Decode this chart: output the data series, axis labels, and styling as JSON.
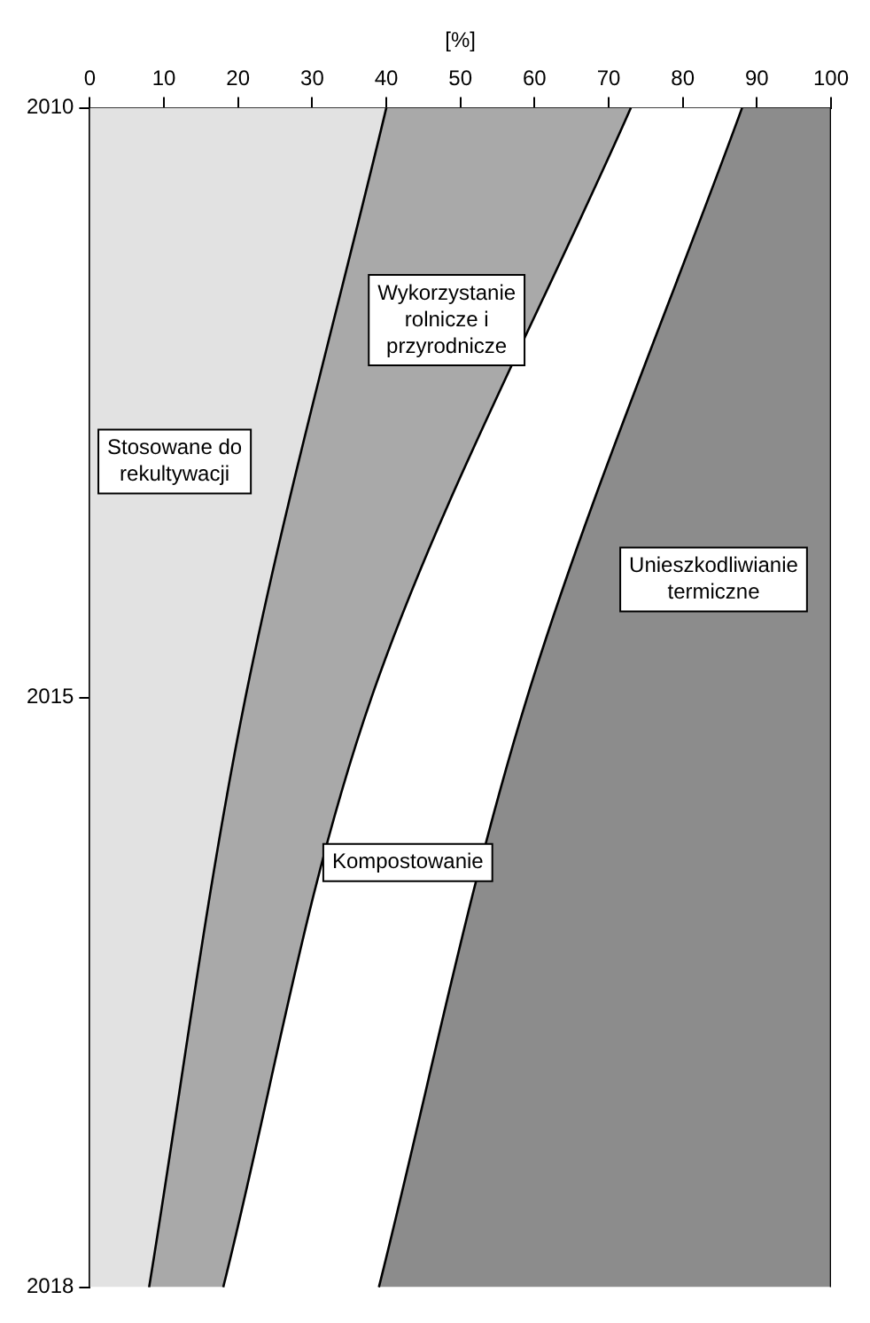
{
  "chart_data": {
    "type": "area",
    "orientation": "horizontal",
    "xlabel": "[%]",
    "categories": [
      "2010",
      "2015",
      "2018"
    ],
    "stacked": true,
    "xlim": [
      0,
      100
    ],
    "xticks": [
      0,
      10,
      20,
      30,
      40,
      50,
      60,
      70,
      80,
      90,
      100
    ],
    "grid": false,
    "legend": false,
    "series": [
      {
        "name": "Stosowane do rekultywacji",
        "color": "#e2e2e2",
        "values": [
          40,
          21,
          8
        ]
      },
      {
        "name": "Wykorzystanie rolnicze i przyrodnicze",
        "color": "#a9a9a9",
        "values": [
          33,
          17,
          10
        ]
      },
      {
        "name": "Kompostowanie",
        "color": "#ffffff",
        "values": [
          15,
          21,
          21
        ]
      },
      {
        "name": "Unieszkodliwianie termiczne",
        "color": "#8c8c8c",
        "values": [
          12,
          41,
          61
        ]
      }
    ]
  }
}
